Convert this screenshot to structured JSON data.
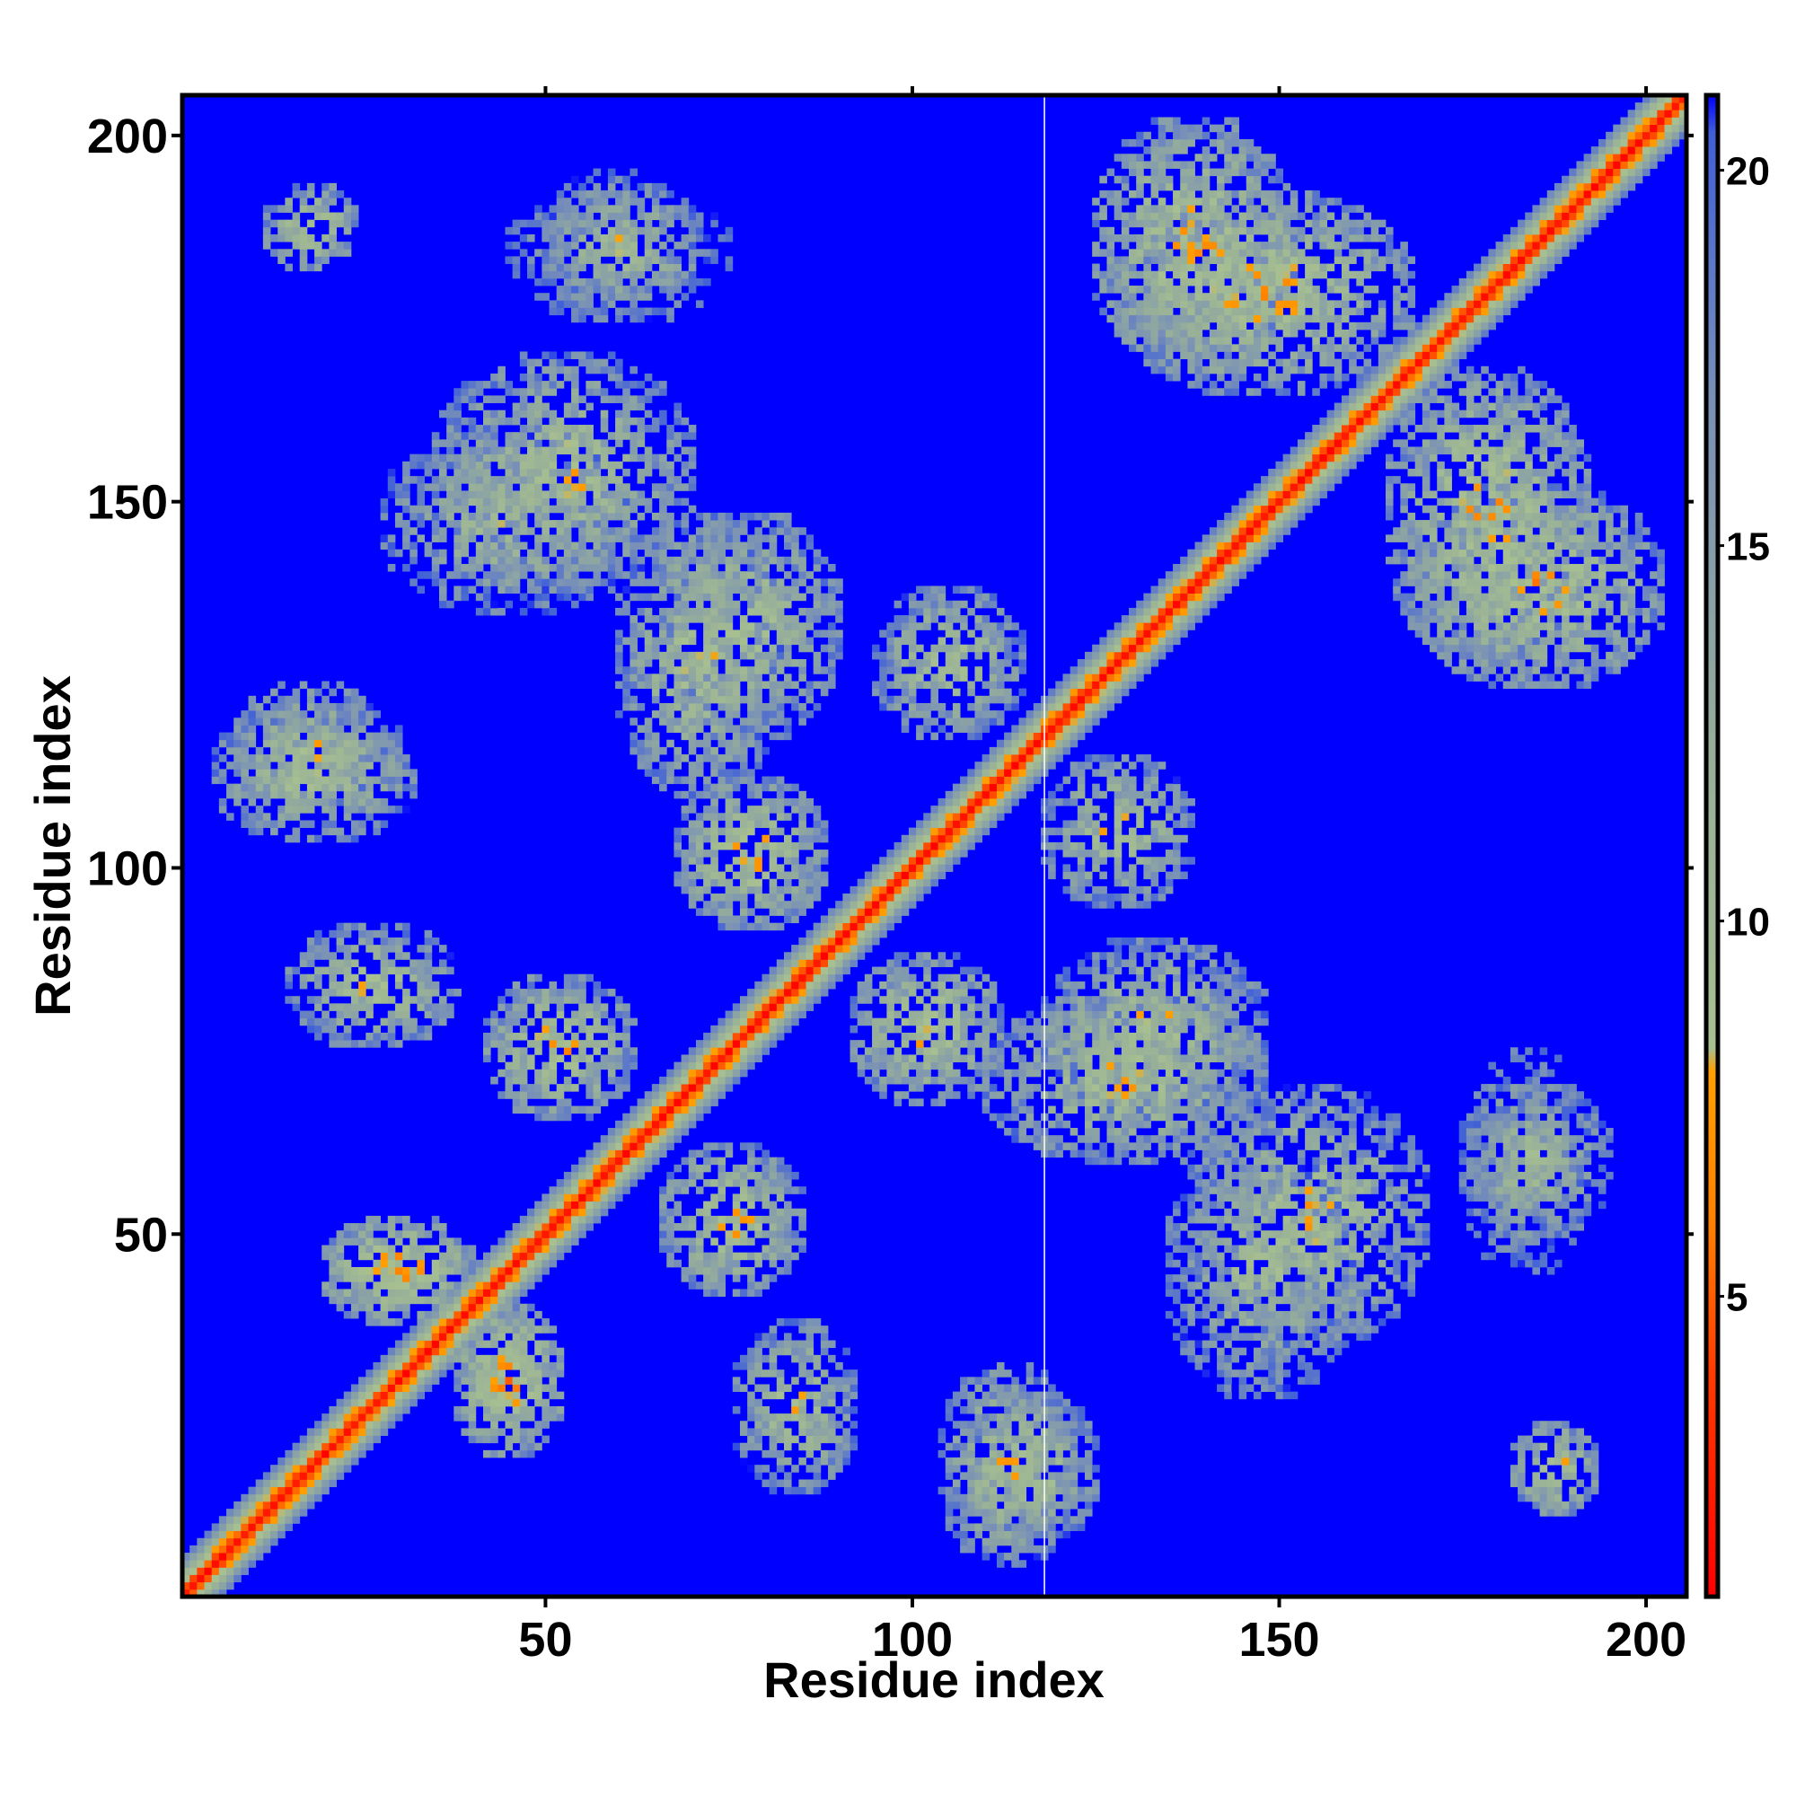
{
  "chart_data": {
    "type": "heatmap",
    "title": "",
    "xlabel": "Residue index",
    "ylabel": "Residue index",
    "xlim": [
      1,
      205
    ],
    "ylim": [
      1,
      205
    ],
    "x_ticks": [
      50,
      100,
      150,
      200
    ],
    "y_ticks": [
      50,
      100,
      150,
      200
    ],
    "grid": false,
    "colorbar": {
      "range": [
        1,
        21
      ],
      "ticks": [
        5,
        10,
        15,
        20
      ],
      "colors": [
        {
          "value": 1,
          "color": "#ff0000"
        },
        {
          "value": 4,
          "color": "#ff3c00"
        },
        {
          "value": 6,
          "color": "#ff8000"
        },
        {
          "value": 8,
          "color": "#ffa000"
        },
        {
          "value": 8.3,
          "color": "#a8c090"
        },
        {
          "value": 12,
          "color": "#98b098"
        },
        {
          "value": 17,
          "color": "#7890b8"
        },
        {
          "value": 20.5,
          "color": "#4060d8"
        },
        {
          "value": 21,
          "color": "#0000ff"
        }
      ]
    },
    "background_value": 21,
    "background_color": "#0000ff",
    "diagonal": {
      "band_halfwidth": 5,
      "min_value": 1
    },
    "marked_column": 118,
    "contact_regions": [
      {
        "x": [
          20,
          40
        ],
        "y": [
          38,
          52
        ],
        "min": 4,
        "density": 0.75
      },
      {
        "x": [
          38,
          52
        ],
        "y": [
          20,
          40
        ],
        "min": 4,
        "density": 0.75
      },
      {
        "x": [
          15,
          38
        ],
        "y": [
          76,
          92
        ],
        "min": 6,
        "density": 0.65
      },
      {
        "x": [
          76,
          92
        ],
        "y": [
          15,
          38
        ],
        "min": 6,
        "density": 0.65
      },
      {
        "x": [
          42,
          62
        ],
        "y": [
          66,
          85
        ],
        "min": 5,
        "density": 0.7
      },
      {
        "x": [
          66,
          85
        ],
        "y": [
          42,
          62
        ],
        "min": 5,
        "density": 0.7
      },
      {
        "x": [
          5,
          32
        ],
        "y": [
          104,
          122
        ],
        "min": 6,
        "density": 0.65
      },
      {
        "x": [
          104,
          122
        ],
        "y": [
          5,
          32
        ],
        "min": 6,
        "density": 0.65
      },
      {
        "x": [
          28,
          62
        ],
        "y": [
          135,
          160
        ],
        "min": 7,
        "density": 0.6
      },
      {
        "x": [
          135,
          160
        ],
        "y": [
          28,
          62
        ],
        "min": 7,
        "density": 0.6
      },
      {
        "x": [
          60,
          82
        ],
        "y": [
          110,
          148
        ],
        "min": 6,
        "density": 0.65
      },
      {
        "x": [
          110,
          148
        ],
        "y": [
          60,
          82
        ],
        "min": 6,
        "density": 0.65
      },
      {
        "x": [
          45,
          75
        ],
        "y": [
          175,
          192
        ],
        "min": 8,
        "density": 0.55
      },
      {
        "x": [
          175,
          192
        ],
        "y": [
          45,
          75
        ],
        "min": 8,
        "density": 0.55
      },
      {
        "x": [
          12,
          24
        ],
        "y": [
          182,
          193
        ],
        "min": 5,
        "density": 0.7
      },
      {
        "x": [
          182,
          193
        ],
        "y": [
          12,
          24
        ],
        "min": 5,
        "density": 0.7
      },
      {
        "x": [
          92,
          112
        ],
        "y": [
          68,
          88
        ],
        "min": 5,
        "density": 0.7
      },
      {
        "x": [
          68,
          88
        ],
        "y": [
          92,
          112
        ],
        "min": 5,
        "density": 0.7
      },
      {
        "x": [
          118,
          148
        ],
        "y": [
          66,
          90
        ],
        "min": 6,
        "density": 0.65
      },
      {
        "x": [
          66,
          90
        ],
        "y": [
          118,
          148
        ],
        "min": 6,
        "density": 0.65
      },
      {
        "x": [
          95,
          115
        ],
        "y": [
          118,
          138
        ],
        "min": 6,
        "density": 0.65
      },
      {
        "x": [
          118,
          138
        ],
        "y": [
          95,
          115
        ],
        "min": 6,
        "density": 0.65
      },
      {
        "x": [
          138,
          170
        ],
        "y": [
          35,
          70
        ],
        "min": 6,
        "density": 0.6
      },
      {
        "x": [
          35,
          70
        ],
        "y": [
          138,
          170
        ],
        "min": 6,
        "density": 0.6
      },
      {
        "x": [
          125,
          152
        ],
        "y": [
          168,
          202
        ],
        "min": 5,
        "density": 0.65
      },
      {
        "x": [
          168,
          202
        ],
        "y": [
          125,
          152
        ],
        "min": 5,
        "density": 0.65
      },
      {
        "x": [
          165,
          192
        ],
        "y": [
          128,
          168
        ],
        "min": 5,
        "density": 0.65
      },
      {
        "x": [
          128,
          168
        ],
        "y": [
          165,
          192
        ],
        "min": 5,
        "density": 0.65
      },
      {
        "x": [
          175,
          195
        ],
        "y": [
          50,
          70
        ],
        "min": 7,
        "density": 0.6
      },
      {
        "x": [
          50,
          70
        ],
        "y": [
          175,
          195
        ],
        "min": 7,
        "density": 0.6
      },
      {
        "x": [
          108,
          125
        ],
        "y": [
          8,
          28
        ],
        "min": 6,
        "density": 0.65
      },
      {
        "x": [
          8,
          28
        ],
        "y": [
          108,
          125
        ],
        "min": 6,
        "density": 0.65
      }
    ]
  }
}
